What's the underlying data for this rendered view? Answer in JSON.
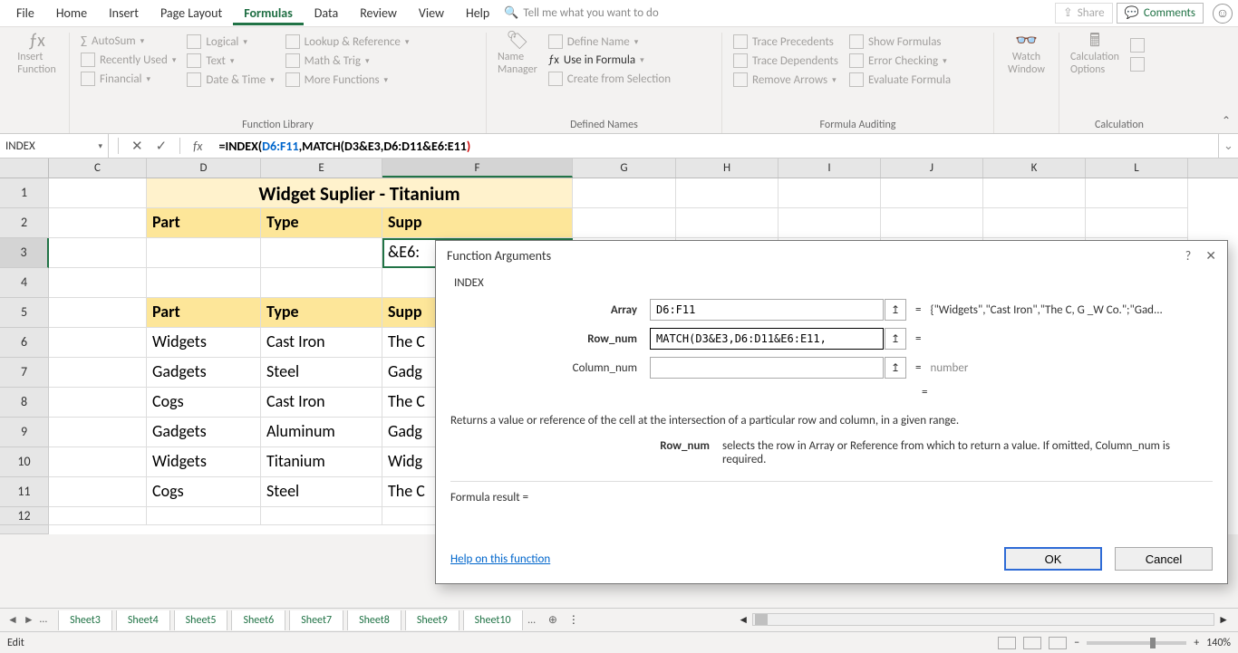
{
  "menubar": {
    "items": [
      "File",
      "Home",
      "Insert",
      "Page Layout",
      "Formulas",
      "Data",
      "Review",
      "View",
      "Help"
    ],
    "active_index": 4,
    "tell_me": "Tell me what you want to do",
    "share": "Share",
    "comments": "Comments"
  },
  "ribbon": {
    "groups": {
      "insert_function": {
        "label": "Insert\nFunction"
      },
      "function_library": {
        "label": "Function Library",
        "col1": [
          "AutoSum",
          "Recently Used",
          "Financial"
        ],
        "col2": [
          "Logical",
          "Text",
          "Date & Time"
        ],
        "col3": [
          "Lookup & Reference",
          "Math & Trig",
          "More Functions"
        ]
      },
      "defined_names": {
        "label": "Defined Names",
        "name_manager": "Name\nManager",
        "items": [
          "Define Name",
          "Use in Formula",
          "Create from Selection"
        ]
      },
      "formula_auditing": {
        "label": "Formula Auditing",
        "col1": [
          "Trace Precedents",
          "Trace Dependents",
          "Remove Arrows"
        ],
        "col2": [
          "Show Formulas",
          "Error Checking",
          "Evaluate Formula"
        ]
      },
      "watch": {
        "label1": "Watch",
        "label2": "Window"
      },
      "calculation": {
        "label": "Calculation",
        "options": "Calculation\nOptions"
      }
    }
  },
  "formula_bar": {
    "name_box": "INDEX",
    "formula_plain": "=INDEX(D6:F11,MATCH(D3&E3,D6:D11&E6:E11)",
    "parts": {
      "eq": "=",
      "fn": "INDEX",
      "open": "(",
      "arr": "D6:F11",
      "comma": ",",
      "match": "MATCH(",
      "inner": "D3&E3,D6:D11&E6:E11",
      "close1": ")",
      "close2": ""
    }
  },
  "columns": {
    "letters": [
      "C",
      "D",
      "E",
      "F",
      "G",
      "H",
      "I",
      "J",
      "K",
      "L"
    ],
    "widths": [
      108,
      126,
      134,
      210,
      114,
      113,
      113,
      113,
      113,
      113
    ],
    "active": "F"
  },
  "sheet": {
    "title": "Widget Suplier - Titanium",
    "headers": [
      "Part",
      "Type",
      "Supp"
    ],
    "row3_F": "&E6:",
    "headers2": [
      "Part",
      "Type",
      "Supp"
    ],
    "data": [
      [
        "Widgets",
        "Cast Iron",
        "The C"
      ],
      [
        "Gadgets",
        "Steel",
        "Gadg"
      ],
      [
        "Cogs",
        "Cast Iron",
        "The C"
      ],
      [
        "Gadgets",
        "Aluminum",
        "Gadg"
      ],
      [
        "Widgets",
        "Titanium",
        "Widg"
      ],
      [
        "Cogs",
        "Steel",
        "The C"
      ]
    ],
    "row_numbers": [
      1,
      2,
      3,
      4,
      5,
      6,
      7,
      8,
      9,
      10,
      11,
      12
    ],
    "active_row": 3
  },
  "dialog": {
    "title": "Function Arguments",
    "fn": "INDEX",
    "args": [
      {
        "label": "Array",
        "value": "D6:F11",
        "bold": true,
        "result": "{\"Widgets\",\"Cast Iron\",\"The C, G _W Co.\";\"Gad..."
      },
      {
        "label": "Row_num",
        "value": "MATCH(D3&E3,D6:D11&E6:E11,",
        "bold": true,
        "result": ""
      },
      {
        "label": "Column_num",
        "value": "",
        "bold": false,
        "result": "number"
      }
    ],
    "final_eq": "=",
    "description": "Returns a value or reference of the cell at the intersection of a particular row and column, in a given range.",
    "arg_help_label": "Row_num",
    "arg_help_text": "selects the row in Array or Reference from which to return a value. If omitted, Column_num is required.",
    "formula_result_label": "Formula result =",
    "help_link": "Help on this function",
    "ok": "OK",
    "cancel": "Cancel"
  },
  "tabs": {
    "items": [
      "Sheet3",
      "Sheet4",
      "Sheet5",
      "Sheet6",
      "Sheet7",
      "Sheet8",
      "Sheet9",
      "Sheet10"
    ]
  },
  "status": {
    "mode": "Edit",
    "zoom": "140%"
  },
  "colors": {
    "accent": "#217346",
    "header_yellow": "#fde699",
    "title_yellow": "#fff2cc",
    "link_blue": "#0066cc"
  }
}
